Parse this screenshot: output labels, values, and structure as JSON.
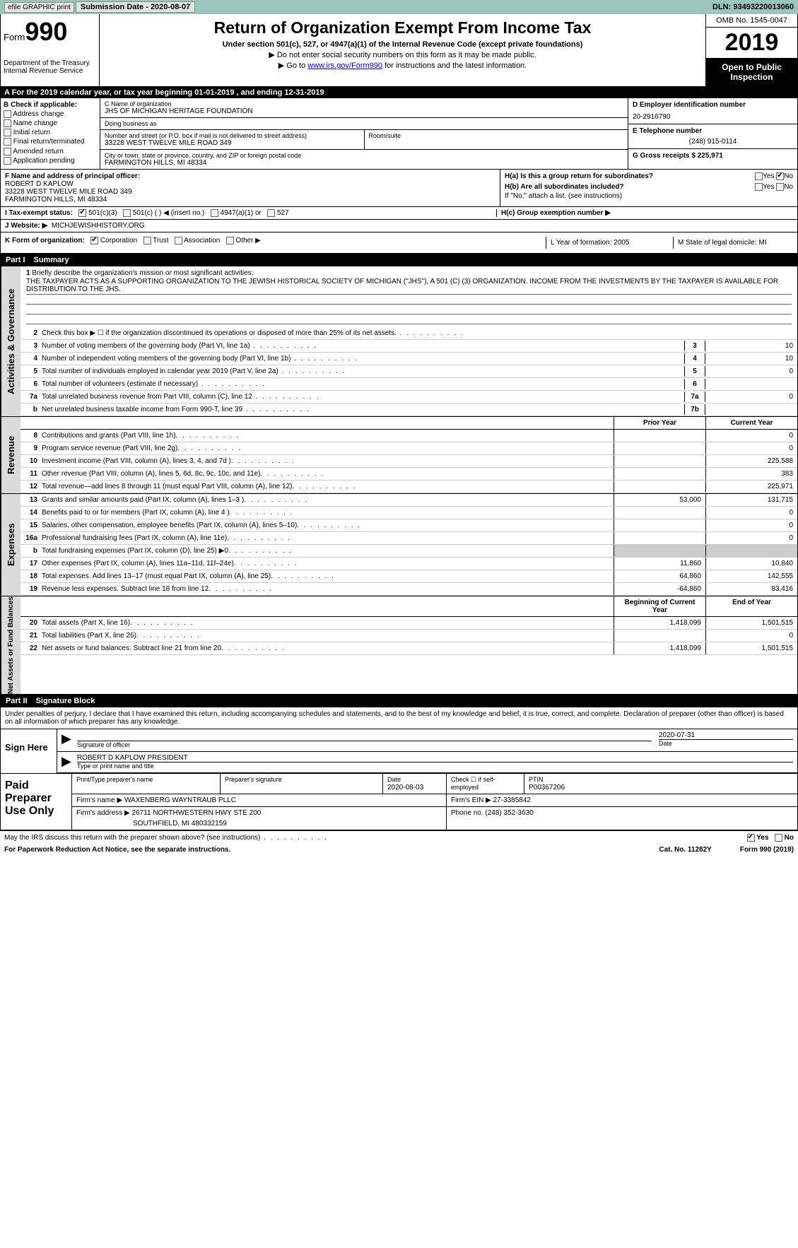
{
  "topbar": {
    "efile": "efile GRAPHIC print",
    "submission_label": "Submission Date - 2020-08-07",
    "dln": "DLN: 93493220013060"
  },
  "header": {
    "form_prefix": "Form",
    "form_num": "990",
    "dept": "Department of the Treasury\nInternal Revenue Service",
    "title": "Return of Organization Exempt From Income Tax",
    "sub1": "Under section 501(c), 527, or 4947(a)(1) of the Internal Revenue Code (except private foundations)",
    "sub2": "▶ Do not enter social security numbers on this form as it may be made public.",
    "sub3_pre": "▶ Go to ",
    "sub3_link": "www.irs.gov/Form990",
    "sub3_post": " for instructions and the latest information.",
    "omb": "OMB No. 1545-0047",
    "year": "2019",
    "open": "Open to Public Inspection"
  },
  "lineA": "A   For the 2019 calendar year, or tax year beginning 01-01-2019        , and ending 12-31-2019",
  "colB": {
    "hdr": "B Check if applicable:",
    "items": [
      "Address change",
      "Name change",
      "Initial return",
      "Final return/terminated",
      "Amended return",
      "Application pending"
    ]
  },
  "colC": {
    "name_lbl": "C Name of organization",
    "name": "JHS OF MICHIGAN HERITAGE FOUNDATION",
    "dba_lbl": "Doing business as",
    "dba": "",
    "addr_lbl": "Number and street (or P.O. box if mail is not delivered to street address)",
    "addr": "33228 WEST TWELVE MILE ROAD 349",
    "room_lbl": "Room/suite",
    "city_lbl": "City or town, state or province, country, and ZIP or foreign postal code",
    "city": "FARMINGTON HILLS, MI  48334"
  },
  "colD": {
    "ein_lbl": "D Employer identification number",
    "ein": "20-2916790",
    "tel_lbl": "E Telephone number",
    "tel": "(248) 915-0114",
    "gross_lbl": "G Gross receipts $ 225,971"
  },
  "rowF": {
    "lbl": "F Name and address of principal officer:",
    "name": "ROBERT D KAPLOW",
    "addr1": "33228 WEST TWELVE MILE ROAD 349",
    "addr2": "FARMINGTON HILLS, MI  48334",
    "ha": "H(a)   Is this a group return for subordinates?",
    "hb": "H(b)   Are all subordinates included?",
    "hb2": "If \"No,\" attach a list. (see instructions)",
    "yn_yes": "Yes",
    "yn_no": "No"
  },
  "rowI": {
    "lbl": "I     Tax-exempt status:",
    "o1": "501(c)(3)",
    "o2": "501(c) (  ) ◀ (insert no.)",
    "o3": "4947(a)(1) or",
    "o4": "527",
    "hc": "H(c)   Group exemption number ▶"
  },
  "rowJ": {
    "lbl": "J    Website: ▶",
    "val": "MICHJEWISHHISTORY.ORG"
  },
  "rowK": {
    "lbl": "K Form of organization:",
    "o1": "Corporation",
    "o2": "Trust",
    "o3": "Association",
    "o4": "Other ▶",
    "l": "L Year of formation: 2005",
    "m": "M State of legal domicile: MI"
  },
  "part1": {
    "num": "Part I",
    "title": "Summary"
  },
  "mission": {
    "num": "1",
    "lbl": "Briefly describe the organization's mission or most significant activities:",
    "text": "THE TAXPAYER ACTS AS A SUPPORTING ORGANIZATION TO THE JEWISH HISTORICAL SOCIETY OF MICHIGAN (\"JHS\"), A 501 (C) (3) ORGANIZATION. INCOME FROM THE INVESTMENTS BY THE TAXPAYER IS AVAILABLE FOR DISTRIBUTION TO THE JHS."
  },
  "gov_tab": "Activities & Governance",
  "gov_rows": [
    {
      "n": "2",
      "t": "Check this box ▶ ☐ if the organization discontinued its operations or disposed of more than 25% of its net assets.",
      "box": "",
      "v": ""
    },
    {
      "n": "3",
      "t": "Number of voting members of the governing body (Part VI, line 1a)",
      "box": "3",
      "v": "10"
    },
    {
      "n": "4",
      "t": "Number of independent voting members of the governing body (Part VI, line 1b)",
      "box": "4",
      "v": "10"
    },
    {
      "n": "5",
      "t": "Total number of individuals employed in calendar year 2019 (Part V, line 2a)",
      "box": "5",
      "v": "0"
    },
    {
      "n": "6",
      "t": "Total number of volunteers (estimate if necessary)",
      "box": "6",
      "v": ""
    },
    {
      "n": "7a",
      "t": "Total unrelated business revenue from Part VIII, column (C), line 12",
      "box": "7a",
      "v": "0"
    },
    {
      "n": "b",
      "t": "Net unrelated business taxable income from Form 990-T, line 39",
      "box": "7b",
      "v": ""
    }
  ],
  "rev_tab": "Revenue",
  "col_py": "Prior Year",
  "col_cy": "Current Year",
  "rev_rows": [
    {
      "n": "8",
      "t": "Contributions and grants (Part VIII, line 1h)",
      "v1": "",
      "v2": "0"
    },
    {
      "n": "9",
      "t": "Program service revenue (Part VIII, line 2g)",
      "v1": "",
      "v2": "0"
    },
    {
      "n": "10",
      "t": "Investment income (Part VIII, column (A), lines 3, 4, and 7d )",
      "v1": "",
      "v2": "225,588"
    },
    {
      "n": "11",
      "t": "Other revenue (Part VIII, column (A), lines 5, 6d, 8c, 9c, 10c, and 11e)",
      "v1": "",
      "v2": "383"
    },
    {
      "n": "12",
      "t": "Total revenue—add lines 8 through 11 (must equal Part VIII, column (A), line 12)",
      "v1": "",
      "v2": "225,971"
    }
  ],
  "exp_tab": "Expenses",
  "exp_rows": [
    {
      "n": "13",
      "t": "Grants and similar amounts paid (Part IX, column (A), lines 1–3 )",
      "v1": "53,000",
      "v2": "131,715"
    },
    {
      "n": "14",
      "t": "Benefits paid to or for members (Part IX, column (A), line 4 )",
      "v1": "",
      "v2": "0"
    },
    {
      "n": "15",
      "t": "Salaries, other compensation, employee benefits (Part IX, column (A), lines 5–10)",
      "v1": "",
      "v2": "0"
    },
    {
      "n": "16a",
      "t": "Professional fundraising fees (Part IX, column (A), line 11e)",
      "v1": "",
      "v2": "0"
    },
    {
      "n": "b",
      "t": "Total fundraising expenses (Part IX, column (D), line 25) ▶0",
      "v1": "shade",
      "v2": "shade"
    },
    {
      "n": "17",
      "t": "Other expenses (Part IX, column (A), lines 11a–11d, 11f–24e)",
      "v1": "11,860",
      "v2": "10,840"
    },
    {
      "n": "18",
      "t": "Total expenses. Add lines 13–17 (must equal Part IX, column (A), line 25)",
      "v1": "64,860",
      "v2": "142,555"
    },
    {
      "n": "19",
      "t": "Revenue less expenses. Subtract line 18 from line 12",
      "v1": "-64,860",
      "v2": "83,416"
    }
  ],
  "na_tab": "Net Assets or Fund Balances",
  "col_boy": "Beginning of Current Year",
  "col_eoy": "End of Year",
  "na_rows": [
    {
      "n": "20",
      "t": "Total assets (Part X, line 16)",
      "v1": "1,418,099",
      "v2": "1,501,515"
    },
    {
      "n": "21",
      "t": "Total liabilities (Part X, line 26)",
      "v1": "",
      "v2": "0"
    },
    {
      "n": "22",
      "t": "Net assets or fund balances. Subtract line 21 from line 20",
      "v1": "1,418,099",
      "v2": "1,501,515"
    }
  ],
  "part2": {
    "num": "Part II",
    "title": "Signature Block"
  },
  "sig": {
    "decl": "Under penalties of perjury, I declare that I have examined this return, including accompanying schedules and statements, and to the best of my knowledge and belief, it is true, correct, and complete. Declaration of preparer (other than officer) is based on all information of which preparer has any knowledge.",
    "here": "Sign Here",
    "sig_lbl": "Signature of officer",
    "date": "2020-07-31",
    "date_lbl": "Date",
    "name": "ROBERT D KAPLOW  PRESIDENT",
    "name_lbl": "Type or print name and title"
  },
  "paid": {
    "lbl": "Paid Preparer Use Only",
    "h1": "Print/Type preparer's name",
    "h2": "Preparer's signature",
    "h3": "Date",
    "h3v": "2020-08-03",
    "h4": "Check ☐ if self-employed",
    "h5": "PTIN",
    "h5v": "P00367206",
    "firm_lbl": "Firm's name    ▶",
    "firm": "WAXENBERG WAYNTRAUB PLLC",
    "ein_lbl": "Firm's EIN ▶",
    "ein": "27-3385842",
    "addr_lbl": "Firm's address ▶",
    "addr": "26711 NORTHWESTERN HWY STE 200",
    "addr2": "SOUTHFIELD, MI  480332159",
    "ph_lbl": "Phone no.",
    "ph": "(248) 352-3630"
  },
  "footer": {
    "q": "May the IRS discuss this return with the preparer shown above? (see instructions)",
    "yes": "Yes",
    "no": "No",
    "pra": "For Paperwork Reduction Act Notice, see the separate instructions.",
    "cat": "Cat. No. 11282Y",
    "form": "Form 990 (2019)"
  }
}
